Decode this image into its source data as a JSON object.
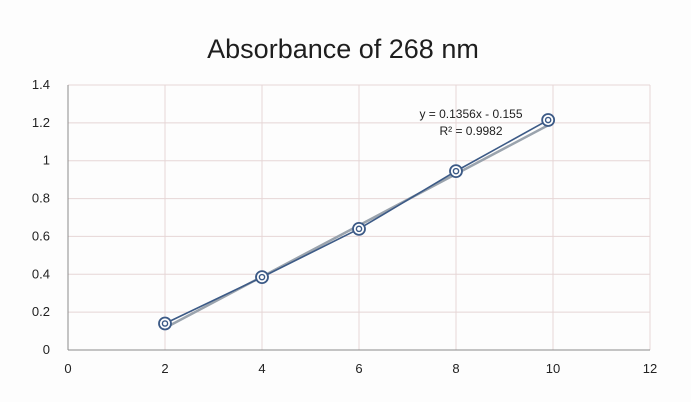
{
  "chart_data": {
    "type": "scatter",
    "title": "Absorbance of 268 nm",
    "xlabel": "",
    "ylabel": "",
    "xlim": [
      0,
      12
    ],
    "ylim": [
      0,
      1.4
    ],
    "x_ticks": [
      "0",
      "2",
      "4",
      "6",
      "8",
      "10",
      "12"
    ],
    "y_ticks": [
      "0",
      "0.2",
      "0.4",
      "0.6",
      "0.8",
      "1",
      "1.2",
      "1.4"
    ],
    "grid": true,
    "legend": "none",
    "series": [
      {
        "x": [
          2,
          4,
          6,
          8,
          9.9
        ],
        "y": [
          0.14,
          0.385,
          0.64,
          0.945,
          1.215
        ],
        "marker": "circle",
        "line": true
      }
    ],
    "trendline": {
      "type": "linear",
      "slope": 0.1356,
      "intercept": -0.155
    },
    "annotation": {
      "equation": "y = 0.1356x - 0.155",
      "r_squared": "R² = 0.9982"
    },
    "colors": {
      "series": "#3c5a86",
      "trendline": "#9aa3ad",
      "grid": "#e6d6d6"
    }
  }
}
